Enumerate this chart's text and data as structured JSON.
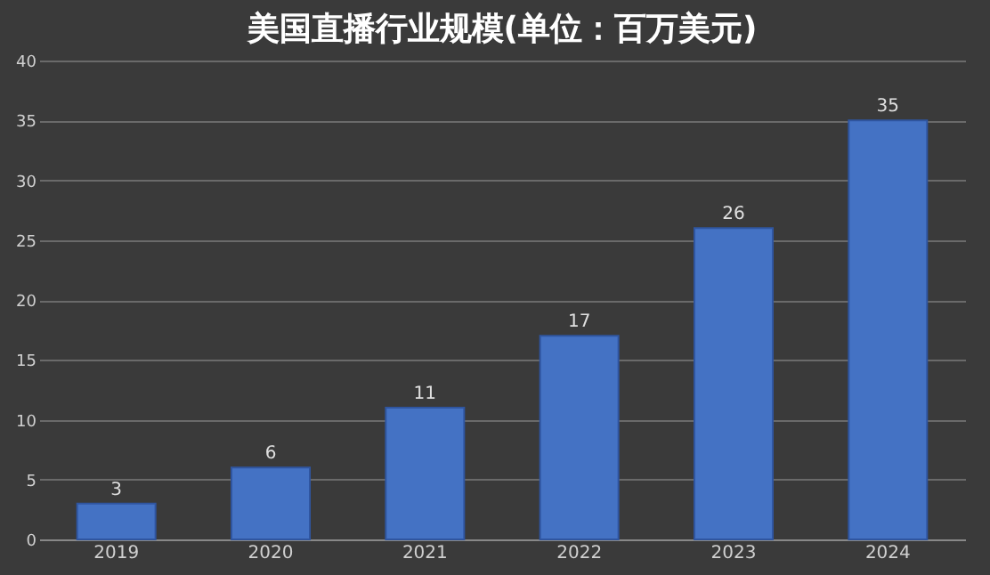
{
  "chart_data": {
    "type": "bar",
    "title": "美国直播行业规模(单位：百万美元)",
    "categories": [
      "2019",
      "2020",
      "2021",
      "2022",
      "2023",
      "2024"
    ],
    "values": [
      3,
      6,
      11,
      17,
      26,
      35
    ],
    "color": "#4472c4",
    "ylim": [
      0,
      40
    ],
    "yticks": [
      0,
      5,
      10,
      15,
      20,
      25,
      30,
      35,
      40
    ],
    "grid": "y",
    "data_labels": true
  }
}
